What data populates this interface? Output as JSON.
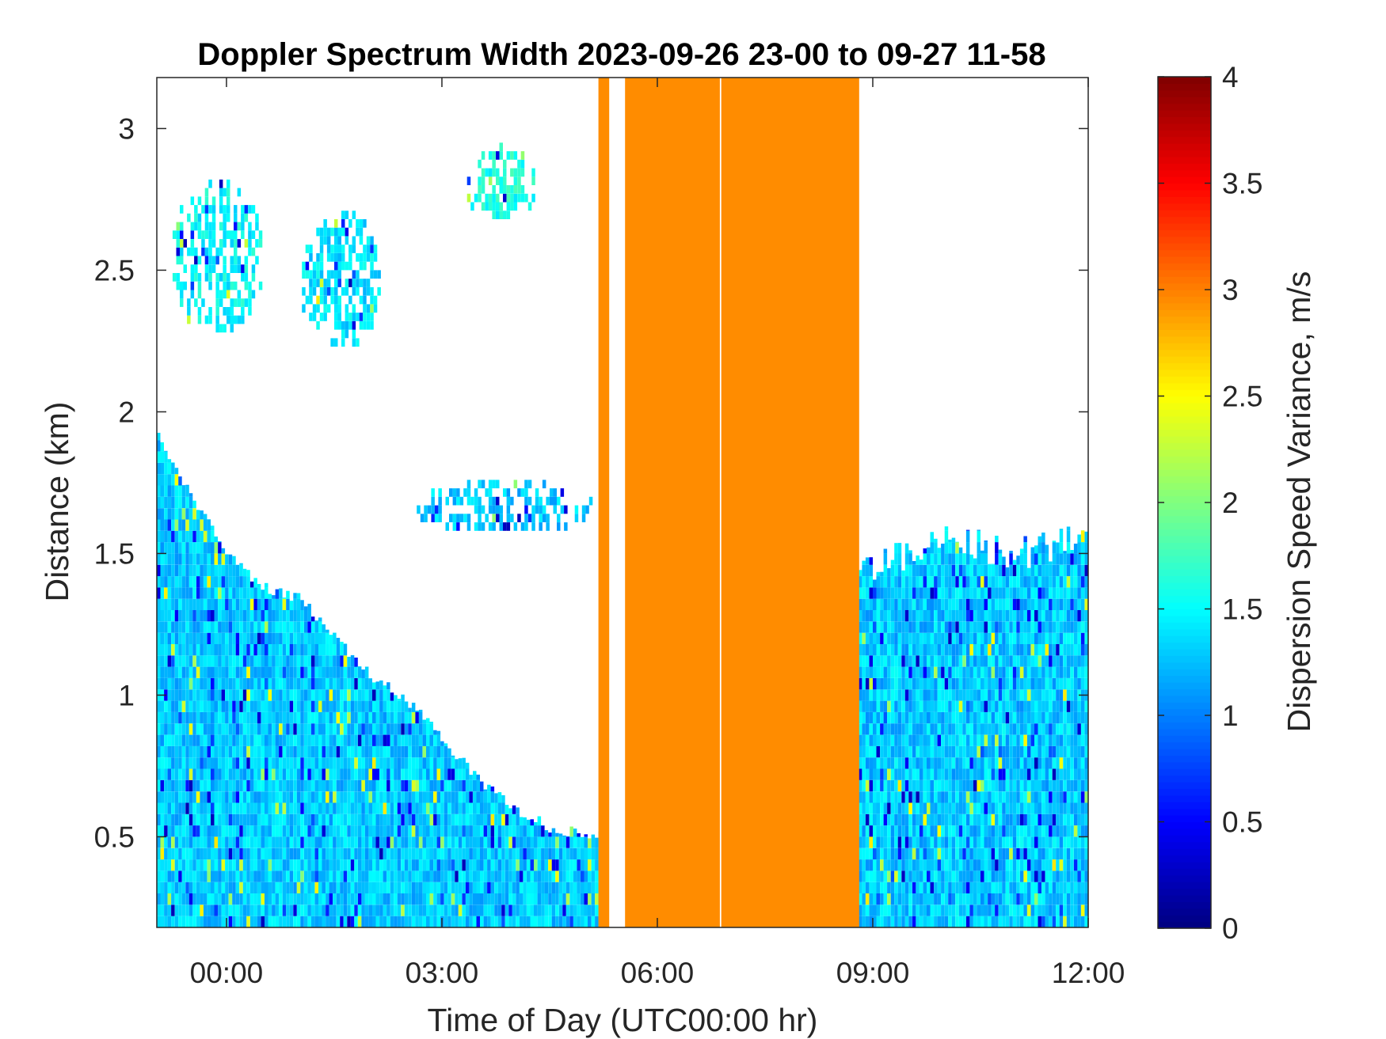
{
  "chart_data": {
    "type": "heatmap",
    "title": "Doppler Spectrum Width 2023-09-26 23-00 to 09-27 11-58",
    "xlabel": "Time of Day (UTC00:00 hr)",
    "ylabel": "Distance (km)",
    "colorbar_label": "Dispersion Speed Variance, m/s",
    "x_unit": "hours relative to 00:00 UTC 2023-09-27",
    "xlim": [
      -0.97,
      12.0
    ],
    "ylim": [
      0.18,
      3.18
    ],
    "clim": [
      0,
      4
    ],
    "colormap": "jet",
    "grid": false,
    "x_ticks": [
      0,
      3,
      6,
      9,
      12
    ],
    "x_tick_labels": [
      "00:00",
      "03:00",
      "06:00",
      "09:00",
      "12:00"
    ],
    "y_ticks": [
      0.5,
      1,
      1.5,
      2,
      2.5,
      3
    ],
    "y_tick_labels": [
      "0.5",
      "1",
      "1.5",
      "2",
      "2.5",
      "3"
    ],
    "c_ticks": [
      0,
      0.5,
      1,
      1.5,
      2,
      2.5,
      3,
      3.5,
      4
    ],
    "c_tick_labels": [
      "0",
      "0.5",
      "1",
      "1.5",
      "2",
      "2.5",
      "3",
      "3.5",
      "4"
    ],
    "boundary_layer_top_km": [
      {
        "t": -0.97,
        "h": 1.92
      },
      {
        "t": -0.5,
        "h": 1.7
      },
      {
        "t": 0.0,
        "h": 1.5
      },
      {
        "t": 0.5,
        "h": 1.38
      },
      {
        "t": 1.0,
        "h": 1.34
      },
      {
        "t": 1.5,
        "h": 1.2
      },
      {
        "t": 2.0,
        "h": 1.07
      },
      {
        "t": 2.5,
        "h": 0.98
      },
      {
        "t": 3.0,
        "h": 0.84
      },
      {
        "t": 3.5,
        "h": 0.7
      },
      {
        "t": 4.0,
        "h": 0.6
      },
      {
        "t": 4.5,
        "h": 0.53
      },
      {
        "t": 5.2,
        "h": 0.5
      }
    ],
    "boundary_layer_value_ms": 1.3,
    "evening_layer_top_km": [
      {
        "t": 8.8,
        "h": 1.45
      },
      {
        "t": 10.0,
        "h": 1.55
      },
      {
        "t": 11.0,
        "h": 1.5
      },
      {
        "t": 12.0,
        "h": 1.55
      }
    ],
    "evening_layer_start_h": 8.8,
    "cloud_patches": [
      {
        "t0": -0.8,
        "t1": 0.5,
        "h0": 2.25,
        "h1": 2.8,
        "value": 1.5
      },
      {
        "t0": 1.0,
        "t1": 2.15,
        "h0": 2.2,
        "h1": 2.7,
        "value": 1.4
      },
      {
        "t0": 3.3,
        "t1": 4.3,
        "h0": 2.65,
        "h1": 2.92,
        "value": 1.6
      },
      {
        "t0": 2.6,
        "t1": 5.1,
        "h0": 1.55,
        "h1": 1.74,
        "value": 1.3
      }
    ],
    "fill_segments_hours": [
      {
        "t0": 5.18,
        "t1": 5.33,
        "value": 2.95
      },
      {
        "t0": 5.55,
        "t1": 6.87,
        "value": 2.95
      },
      {
        "t0": 6.89,
        "t1": 8.81,
        "value": 2.95
      }
    ]
  }
}
